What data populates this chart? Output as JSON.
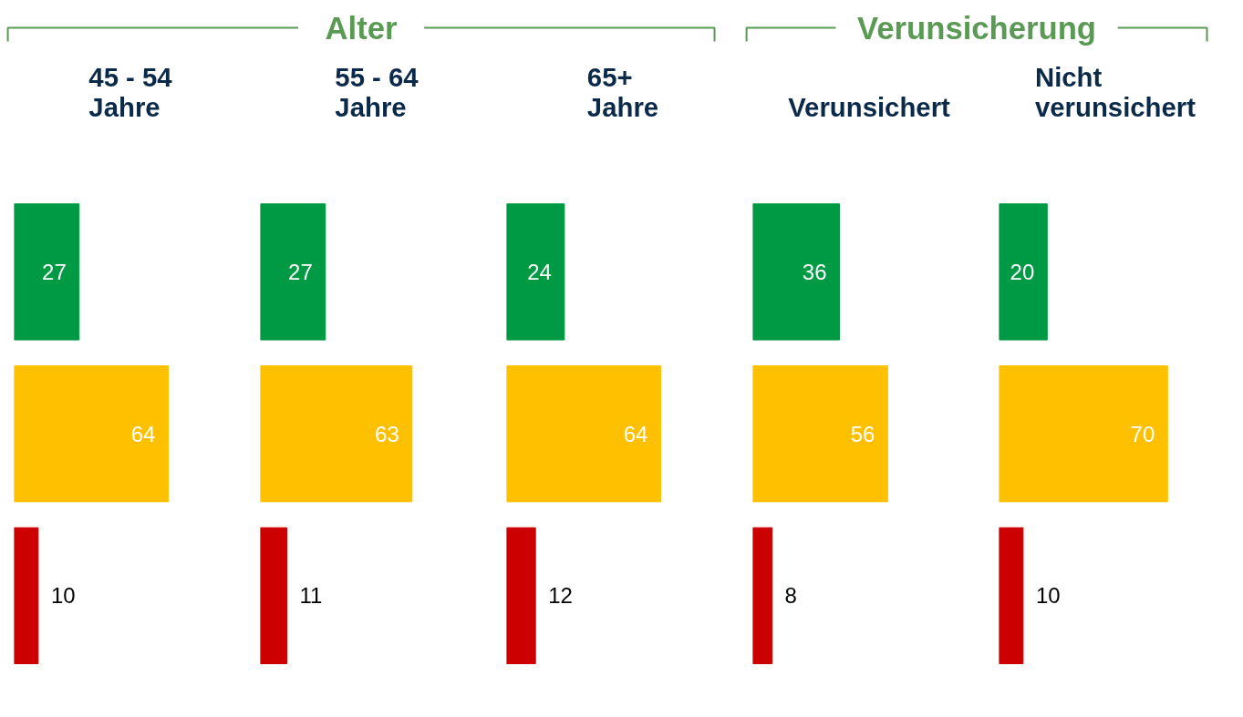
{
  "chart_data": [
    {
      "type": "bar",
      "orientation": "horizontal",
      "title": "45 - 54 Jahre",
      "annotations": [
        "Alter"
      ],
      "categories": [
        null,
        null,
        null
      ],
      "values": [
        27,
        64,
        10
      ],
      "colors": [
        "#009a44",
        "#ffc000",
        "#cc0000"
      ],
      "data_labels": true
    },
    {
      "type": "bar",
      "orientation": "horizontal",
      "title": "55 - 64 Jahre",
      "categories": [
        null,
        null,
        null
      ],
      "values": [
        27,
        63,
        11
      ],
      "colors": [
        "#009a44",
        "#ffc000",
        "#cc0000"
      ],
      "data_labels": true
    },
    {
      "type": "bar",
      "orientation": "horizontal",
      "title": "65+ Jahre",
      "categories": [
        null,
        null,
        null
      ],
      "values": [
        24,
        64,
        12
      ],
      "colors": [
        "#009a44",
        "#ffc000",
        "#cc0000"
      ],
      "data_labels": true
    },
    {
      "type": "bar",
      "orientation": "horizontal",
      "title": "Verunsichert",
      "annotations": [
        "Verunsicherung"
      ],
      "categories": [
        null,
        null,
        null
      ],
      "values": [
        36,
        56,
        8
      ],
      "colors": [
        "#009a44",
        "#ffc000",
        "#cc0000"
      ],
      "data_labels": true
    },
    {
      "type": "bar",
      "orientation": "horizontal",
      "title": "Nicht verunsichert",
      "categories": [
        null,
        null,
        null
      ],
      "values": [
        20,
        70,
        10
      ],
      "colors": [
        "#009a44",
        "#ffc000",
        "#cc0000"
      ],
      "data_labels": true
    }
  ]
}
